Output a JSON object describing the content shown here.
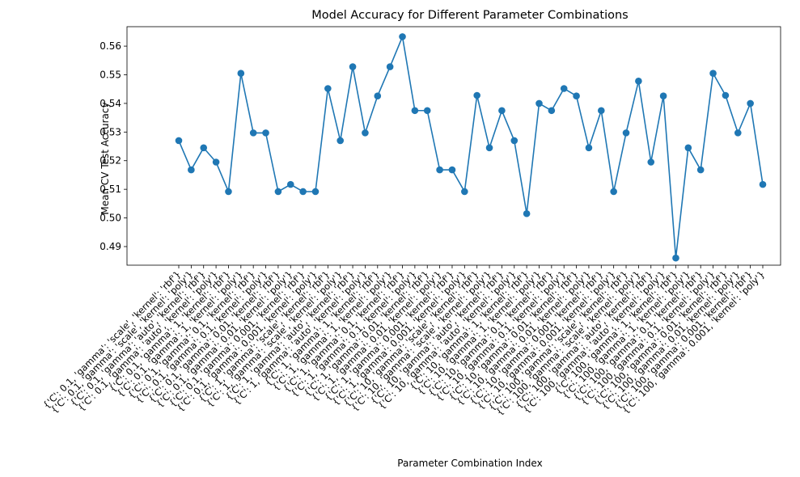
{
  "chart_data": {
    "type": "line",
    "title": "Model Accuracy for Different Parameter Combinations",
    "xlabel": "Parameter Combination Index",
    "ylabel": "Mean CV Test Accuracy",
    "ylim": [
      0.4835,
      0.5668
    ],
    "yticks": [
      0.49,
      0.5,
      0.51,
      0.52,
      0.53,
      0.54,
      0.55,
      0.56
    ],
    "grid": false,
    "marker": "circle",
    "line_color": "#1f77b4",
    "categories": [
      "{'C': 0.1, 'gamma': 'scale', 'kernel': 'rbf'}",
      "{'C': 0.1, 'gamma': 'scale', 'kernel': 'poly'}",
      "{'C': 0.1, 'gamma': 'auto', 'kernel': 'rbf'}",
      "{'C': 0.1, 'gamma': 'auto', 'kernel': 'poly'}",
      "{'C': 0.1, 'gamma': 1, 'kernel': 'rbf'}",
      "{'C': 0.1, 'gamma': 1, 'kernel': 'poly'}",
      "{'C': 0.1, 'gamma': 0.1, 'kernel': 'rbf'}",
      "{'C': 0.1, 'gamma': 0.1, 'kernel': 'poly'}",
      "{'C': 0.1, 'gamma': 0.01, 'kernel': 'rbf'}",
      "{'C': 0.1, 'gamma': 0.01, 'kernel': 'poly'}",
      "{'C': 0.1, 'gamma': 0.001, 'kernel': 'rbf'}",
      "{'C': 0.1, 'gamma': 0.001, 'kernel': 'poly'}",
      "{'C': 1, 'gamma': 'scale', 'kernel': 'rbf'}",
      "{'C': 1, 'gamma': 'scale', 'kernel': 'poly'}",
      "{'C': 1, 'gamma': 'auto', 'kernel': 'rbf'}",
      "{'C': 1, 'gamma': 'auto', 'kernel': 'poly'}",
      "{'C': 1, 'gamma': 1, 'kernel': 'rbf'}",
      "{'C': 1, 'gamma': 1, 'kernel': 'poly'}",
      "{'C': 1, 'gamma': 0.1, 'kernel': 'rbf'}",
      "{'C': 1, 'gamma': 0.1, 'kernel': 'poly'}",
      "{'C': 1, 'gamma': 0.01, 'kernel': 'rbf'}",
      "{'C': 1, 'gamma': 0.01, 'kernel': 'poly'}",
      "{'C': 1, 'gamma': 0.001, 'kernel': 'rbf'}",
      "{'C': 1, 'gamma': 0.001, 'kernel': 'poly'}",
      "{'C': 10, 'gamma': 'scale', 'kernel': 'rbf'}",
      "{'C': 10, 'gamma': 'scale', 'kernel': 'poly'}",
      "{'C': 10, 'gamma': 'auto', 'kernel': 'rbf'}",
      "{'C': 10, 'gamma': 'auto', 'kernel': 'poly'}",
      "{'C': 10, 'gamma': 1, 'kernel': 'rbf'}",
      "{'C': 10, 'gamma': 1, 'kernel': 'poly'}",
      "{'C': 10, 'gamma': 0.1, 'kernel': 'rbf'}",
      "{'C': 10, 'gamma': 0.1, 'kernel': 'poly'}",
      "{'C': 10, 'gamma': 0.01, 'kernel': 'rbf'}",
      "{'C': 10, 'gamma': 0.01, 'kernel': 'poly'}",
      "{'C': 10, 'gamma': 0.001, 'kernel': 'rbf'}",
      "{'C': 10, 'gamma': 0.001, 'kernel': 'poly'}",
      "{'C': 100, 'gamma': 'scale', 'kernel': 'rbf'}",
      "{'C': 100, 'gamma': 'scale', 'kernel': 'poly'}",
      "{'C': 100, 'gamma': 'auto', 'kernel': 'rbf'}",
      "{'C': 100, 'gamma': 'auto', 'kernel': 'poly'}",
      "{'C': 100, 'gamma': 1, 'kernel': 'rbf'}",
      "{'C': 100, 'gamma': 1, 'kernel': 'poly'}",
      "{'C': 100, 'gamma': 0.1, 'kernel': 'rbf'}",
      "{'C': 100, 'gamma': 0.1, 'kernel': 'poly'}",
      "{'C': 100, 'gamma': 0.01, 'kernel': 'rbf'}",
      "{'C': 100, 'gamma': 0.01, 'kernel': 'poly'}",
      "{'C': 100, 'gamma': 0.001, 'kernel': 'rbf'}",
      "{'C': 100, 'gamma': 0.001, 'kernel': 'poly'}"
    ],
    "values": [
      0.527,
      0.5168,
      0.5245,
      0.5195,
      0.5092,
      0.5505,
      0.5297,
      0.5297,
      0.5092,
      0.5117,
      0.5092,
      0.5092,
      0.5452,
      0.527,
      0.5528,
      0.5297,
      0.5426,
      0.5528,
      0.5633,
      0.5375,
      0.5375,
      0.5168,
      0.5168,
      0.5092,
      0.5428,
      0.5245,
      0.5375,
      0.527,
      0.5015,
      0.54,
      0.5375,
      0.5452,
      0.5426,
      0.5245,
      0.5375,
      0.5092,
      0.5297,
      0.5478,
      0.5195,
      0.5426,
      0.486,
      0.5245,
      0.5168,
      0.5505,
      0.5428,
      0.5297,
      0.54,
      0.5117
    ]
  }
}
